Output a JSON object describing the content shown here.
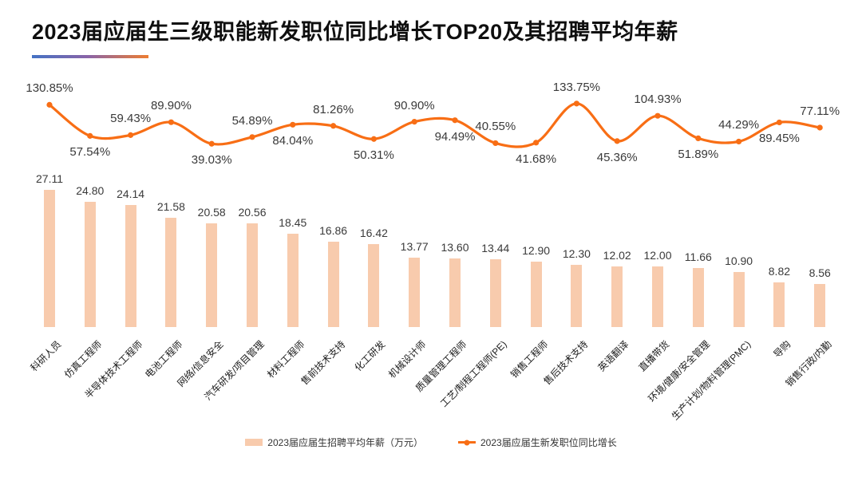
{
  "title": "2023届应届生三级职能新发职位同比增长TOP20及其招聘平均年薪",
  "colors": {
    "bar": "#F8CBAD",
    "line": "#F86E15",
    "underline_start": "#4472C4",
    "underline_end": "#ED7D31",
    "value_label": "#3a3a3a",
    "title": "#0f0f0f"
  },
  "legend": {
    "bar_label": "2023届应届生招聘平均年薪（万元）",
    "line_label": "2023届应届生新发职位同比增长"
  },
  "chart_data": {
    "type": "combo(bar+line)",
    "title": "2023届应届生三级职能新发职位同比增长TOP20及其招聘平均年薪",
    "categories": [
      "科研人员",
      "仿真工程师",
      "半导体技术工程师",
      "电池工程师",
      "网络/信息安全",
      "汽车研发/项目管理",
      "材料工程师",
      "售前技术支持",
      "化工研发",
      "机械设计师",
      "质量管理工程师",
      "工艺/制程工程师(PE)",
      "销售工程师",
      "售后技术支持",
      "英语翻译",
      "直播带货",
      "环境/健康/安全管理",
      "生产计划/物料管理(PMC)",
      "导购",
      "销售行政/内勤"
    ],
    "series": [
      {
        "name": "2023届应届生招聘平均年薪（万元）",
        "type": "bar",
        "unit": "万元",
        "values": [
          27.11,
          24.8,
          24.14,
          21.58,
          20.58,
          20.56,
          18.45,
          16.86,
          16.42,
          13.77,
          13.6,
          13.44,
          12.9,
          12.3,
          12.02,
          12.0,
          11.66,
          10.9,
          8.82,
          8.56
        ]
      },
      {
        "name": "2023届应届生新发职位同比增长",
        "type": "line",
        "unit": "%",
        "values": [
          130.85,
          57.54,
          59.43,
          89.9,
          39.03,
          54.89,
          84.04,
          81.26,
          50.31,
          90.9,
          94.49,
          40.55,
          41.68,
          133.75,
          45.36,
          104.93,
          51.89,
          44.29,
          89.45,
          77.11
        ]
      }
    ],
    "layout": {
      "grid": false,
      "axes_visible": false,
      "all_points_labeled": true,
      "legend_position": "bottom-center",
      "category_label_rotation_deg": 45,
      "line_label_side": [
        "above",
        "below",
        "above",
        "above",
        "below",
        "above",
        "below",
        "above",
        "below",
        "above",
        "below",
        "above",
        "below",
        "above",
        "below",
        "above",
        "below",
        "above",
        "below",
        "above"
      ]
    }
  }
}
